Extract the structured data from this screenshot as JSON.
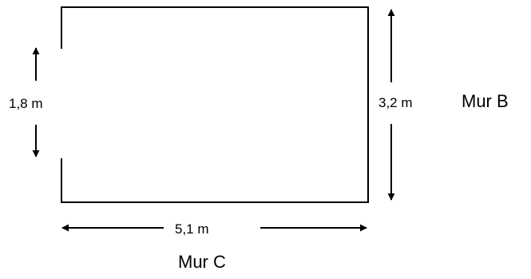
{
  "labels": {
    "left_opening": "1,8 m",
    "right_height": "3,2 m",
    "right_wall": "Mur B",
    "bottom_width": "5,1 m",
    "bottom_wall": "Mur C"
  },
  "colors": {
    "line": "#000000",
    "background": "#ffffff"
  }
}
